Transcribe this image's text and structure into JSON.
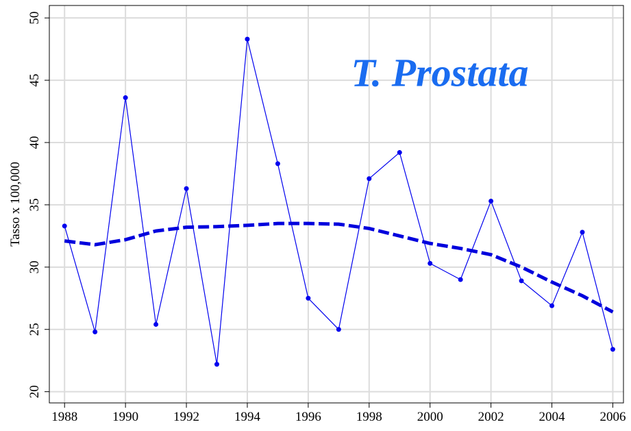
{
  "chart_data": {
    "type": "line",
    "y_label": "Tasso x 100,000",
    "annotation": "T. Prostata",
    "annotation_color": "#1a6cf0",
    "x": [
      1988,
      1989,
      1990,
      1991,
      1992,
      1993,
      1994,
      1995,
      1996,
      1997,
      1998,
      1999,
      2000,
      2001,
      2002,
      2003,
      2004,
      2005,
      2006
    ],
    "series": [
      {
        "color": "#0000ee",
        "style": "solid",
        "markers": true,
        "values": [
          33.3,
          24.8,
          43.6,
          25.4,
          36.3,
          22.2,
          48.3,
          38.3,
          27.5,
          25.0,
          37.1,
          39.2,
          30.3,
          29.0,
          35.3,
          28.9,
          26.9,
          32.8,
          23.4
        ]
      },
      {
        "color": "#0000dd",
        "style": "dashed",
        "markers": false,
        "values": [
          32.1,
          31.8,
          32.2,
          32.9,
          33.2,
          33.25,
          33.35,
          33.5,
          33.5,
          33.45,
          33.1,
          32.5,
          31.9,
          31.5,
          31.0,
          30.0,
          28.8,
          27.7,
          26.4
        ]
      }
    ],
    "xlim": [
      1987.5,
      2006.35
    ],
    "ylim": [
      19.1,
      51
    ],
    "xticks": [
      1988,
      1990,
      1992,
      1994,
      1996,
      1998,
      2000,
      2002,
      2004,
      2006
    ],
    "yticks": [
      20,
      25,
      30,
      35,
      40,
      45,
      50
    ],
    "grid": true
  }
}
